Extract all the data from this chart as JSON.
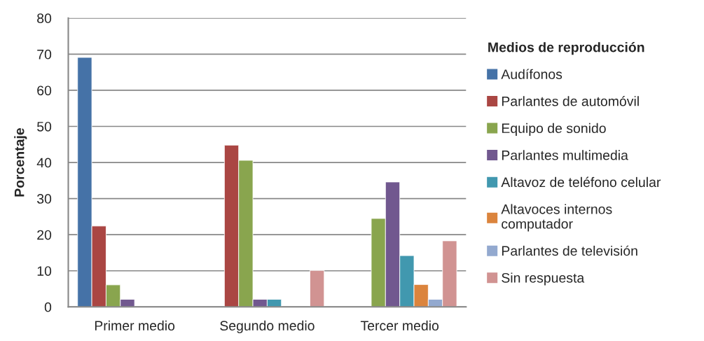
{
  "chart_data": {
    "type": "bar",
    "ylabel": "Porcentaje",
    "legend_title": "Medios de reproducción",
    "categories": [
      "Primer medio",
      "Segundo medio",
      "Tercer medio"
    ],
    "series": [
      {
        "name": "Audífonos",
        "color": "#4572a7",
        "values": [
          69.1,
          null,
          null
        ]
      },
      {
        "name": "Parlantes de automóvil",
        "color": "#aa4643",
        "values": [
          22.4,
          44.8,
          null
        ]
      },
      {
        "name": "Equipo de sonido",
        "color": "#89a54e",
        "values": [
          6.1,
          40.6,
          24.5
        ]
      },
      {
        "name": "Parlantes multimedia",
        "color": "#71588f",
        "values": [
          2.1,
          2.1,
          34.6
        ]
      },
      {
        "name": "Altavoz de teléfono celular",
        "color": "#4198af",
        "values": [
          null,
          2.1,
          14.2
        ]
      },
      {
        "name": "Altavoces internos computador",
        "color": "#db843d",
        "values": [
          null,
          null,
          6.2
        ]
      },
      {
        "name": "Parlantes de televisión",
        "color": "#93a9cf",
        "values": [
          null,
          null,
          2.1
        ]
      },
      {
        "name": "Sin respuesta",
        "color": "#d19392",
        "values": [
          null,
          10.1,
          18.3
        ]
      }
    ],
    "ylim": [
      0,
      80
    ],
    "yticks": [
      0,
      10,
      20,
      30,
      40,
      50,
      60,
      70,
      80
    ],
    "grid": "y",
    "legend": "right"
  }
}
